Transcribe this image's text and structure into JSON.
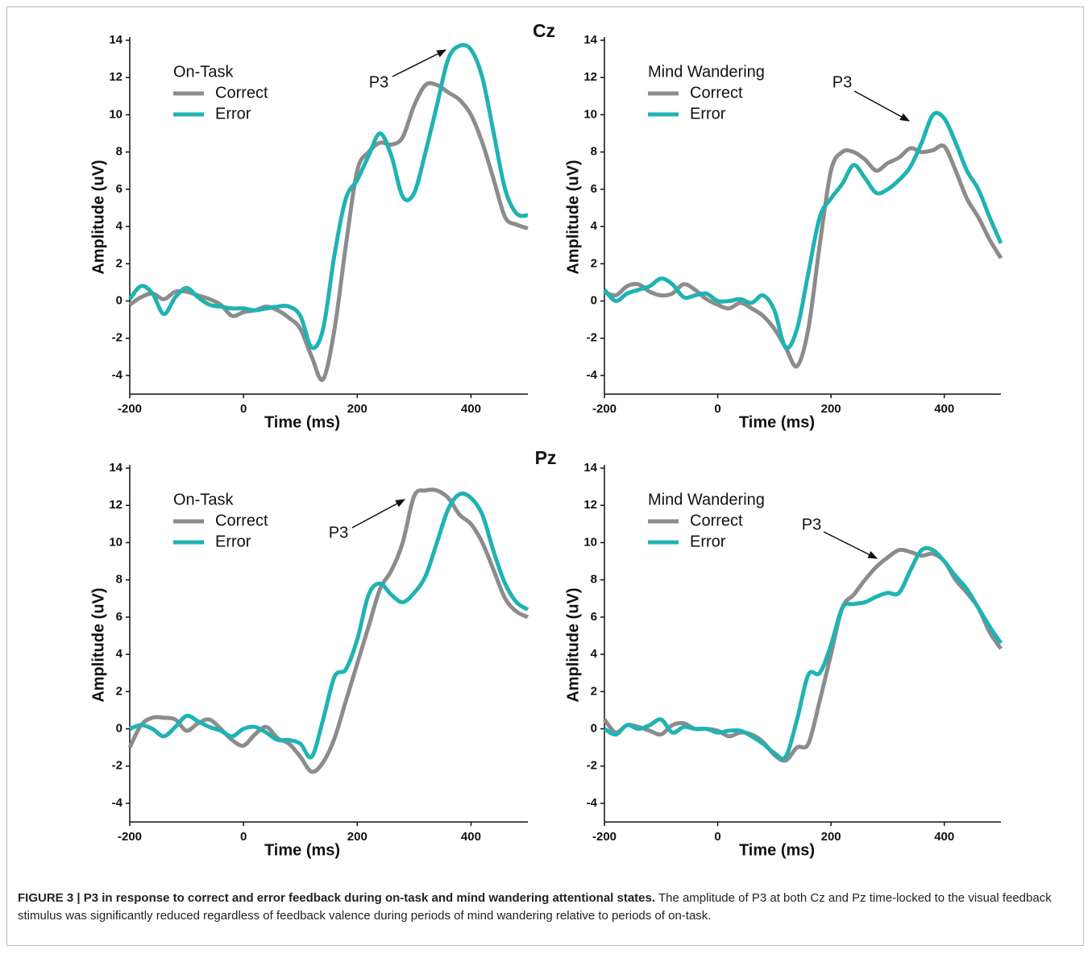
{
  "row_labels": [
    "Cz",
    "Pz"
  ],
  "chart_data": [
    {
      "type": "line",
      "legend_title": "On-Task",
      "legend": "upper left",
      "annotation": "P3",
      "xlabel": "Time (ms)",
      "ylabel": "Amplitude (uV)",
      "xlim": [
        -200,
        500
      ],
      "ylim": [
        -5,
        14
      ],
      "xticks": [
        -200,
        0,
        200,
        400
      ],
      "yticks": [
        -4,
        -2,
        0,
        2,
        4,
        6,
        8,
        10,
        12,
        14
      ],
      "x": [
        -200,
        -180,
        -160,
        -140,
        -120,
        -100,
        -80,
        -60,
        -40,
        -20,
        0,
        20,
        40,
        60,
        80,
        100,
        120,
        140,
        160,
        180,
        200,
        220,
        240,
        260,
        280,
        300,
        320,
        340,
        360,
        380,
        400,
        420,
        440,
        460,
        480,
        500
      ],
      "series": [
        {
          "name": "Correct",
          "color": "#8c8c8c",
          "values": [
            -0.2,
            0.2,
            0.4,
            0.1,
            0.5,
            0.5,
            0.3,
            0.1,
            -0.2,
            -0.8,
            -0.6,
            -0.5,
            -0.3,
            -0.5,
            -0.9,
            -1.5,
            -3.0,
            -4.2,
            -1.5,
            3.0,
            7.0,
            8.0,
            8.5,
            8.4,
            8.8,
            10.5,
            11.6,
            11.6,
            11.2,
            10.8,
            10.0,
            8.5,
            6.5,
            4.5,
            4.1,
            3.9
          ]
        },
        {
          "name": "Error",
          "color": "#1fb3b3",
          "values": [
            0.1,
            0.8,
            0.4,
            -0.7,
            0.2,
            0.7,
            0.2,
            -0.2,
            -0.3,
            -0.4,
            -0.4,
            -0.5,
            -0.4,
            -0.3,
            -0.3,
            -0.8,
            -2.5,
            -1.5,
            2.5,
            5.5,
            6.5,
            7.8,
            9.0,
            7.8,
            5.6,
            5.8,
            8.0,
            10.5,
            13.0,
            13.7,
            13.5,
            12.0,
            9.0,
            6.0,
            4.7,
            4.6
          ]
        }
      ]
    },
    {
      "type": "line",
      "legend_title": "Mind Wandering",
      "legend": "upper left",
      "annotation": "P3",
      "xlabel": "Time (ms)",
      "ylabel": "Amplitude (uV)",
      "xlim": [
        -200,
        500
      ],
      "ylim": [
        -5,
        14
      ],
      "xticks": [
        -200,
        0,
        200,
        400
      ],
      "yticks": [
        -4,
        -2,
        0,
        2,
        4,
        6,
        8,
        10,
        12,
        14
      ],
      "x": [
        -200,
        -180,
        -160,
        -140,
        -120,
        -100,
        -80,
        -60,
        -40,
        -20,
        0,
        20,
        40,
        60,
        80,
        100,
        120,
        140,
        160,
        180,
        200,
        220,
        240,
        260,
        280,
        300,
        320,
        340,
        360,
        380,
        400,
        420,
        440,
        460,
        480,
        500
      ],
      "series": [
        {
          "name": "Correct",
          "color": "#8c8c8c",
          "values": [
            0.5,
            0.3,
            0.8,
            0.9,
            0.5,
            0.3,
            0.4,
            0.9,
            0.6,
            0.1,
            -0.2,
            -0.4,
            -0.1,
            -0.4,
            -0.8,
            -1.5,
            -2.5,
            -3.5,
            -1.5,
            3.0,
            7.0,
            8.0,
            8.0,
            7.6,
            7.0,
            7.4,
            7.7,
            8.2,
            8.0,
            8.1,
            8.3,
            7.0,
            5.5,
            4.5,
            3.3,
            2.3
          ]
        },
        {
          "name": "Error",
          "color": "#1fb3b3",
          "values": [
            0.6,
            0.0,
            0.4,
            0.6,
            0.8,
            1.2,
            0.9,
            0.2,
            0.3,
            0.4,
            0.0,
            0.0,
            0.1,
            -0.1,
            0.3,
            -0.5,
            -2.5,
            -1.5,
            1.5,
            4.5,
            5.5,
            6.3,
            7.3,
            6.6,
            5.8,
            6.0,
            6.5,
            7.2,
            8.5,
            10.0,
            9.8,
            8.5,
            7.0,
            6.0,
            4.5,
            3.1
          ]
        }
      ]
    },
    {
      "type": "line",
      "legend_title": "On-Task",
      "legend": "upper left",
      "annotation": "P3",
      "xlabel": "Time (ms)",
      "ylabel": "Amplitude (uV)",
      "xlim": [
        -200,
        500
      ],
      "ylim": [
        -5,
        14
      ],
      "xticks": [
        -200,
        0,
        200,
        400
      ],
      "yticks": [
        -4,
        -2,
        0,
        2,
        4,
        6,
        8,
        10,
        12,
        14
      ],
      "x": [
        -200,
        -180,
        -160,
        -140,
        -120,
        -100,
        -80,
        -60,
        -40,
        -20,
        0,
        20,
        40,
        60,
        80,
        100,
        120,
        140,
        160,
        180,
        200,
        220,
        240,
        260,
        280,
        300,
        320,
        340,
        360,
        380,
        400,
        420,
        440,
        460,
        480,
        500
      ],
      "series": [
        {
          "name": "Correct",
          "color": "#8c8c8c",
          "values": [
            -1.0,
            0.2,
            0.6,
            0.6,
            0.5,
            -0.1,
            0.3,
            0.5,
            0.0,
            -0.6,
            -0.9,
            -0.3,
            0.1,
            -0.5,
            -0.8,
            -1.5,
            -2.3,
            -1.8,
            -0.5,
            1.5,
            3.5,
            5.5,
            7.5,
            8.5,
            10.0,
            12.5,
            12.8,
            12.8,
            12.4,
            11.5,
            11.0,
            10.0,
            8.5,
            7.0,
            6.3,
            6.0
          ]
        },
        {
          "name": "Error",
          "color": "#1fb3b3",
          "values": [
            0.0,
            0.2,
            0.0,
            -0.4,
            0.1,
            0.7,
            0.4,
            0.1,
            -0.1,
            -0.4,
            0.0,
            0.1,
            -0.2,
            -0.6,
            -0.6,
            -0.8,
            -1.5,
            0.5,
            2.8,
            3.2,
            4.8,
            7.2,
            7.8,
            7.2,
            6.8,
            7.3,
            8.2,
            10.0,
            11.8,
            12.6,
            12.4,
            11.5,
            9.5,
            7.8,
            6.8,
            6.4
          ]
        }
      ]
    },
    {
      "type": "line",
      "legend_title": "Mind Wandering",
      "legend": "upper left",
      "annotation": "P3",
      "xlabel": "Time (ms)",
      "ylabel": "Amplitude (uV)",
      "xlim": [
        -200,
        500
      ],
      "ylim": [
        -5,
        14
      ],
      "xticks": [
        -200,
        0,
        200,
        400
      ],
      "yticks": [
        -4,
        -2,
        0,
        2,
        4,
        6,
        8,
        10,
        12,
        14
      ],
      "x": [
        -200,
        -180,
        -160,
        -140,
        -120,
        -100,
        -80,
        -60,
        -40,
        -20,
        0,
        20,
        40,
        60,
        80,
        100,
        120,
        140,
        160,
        180,
        200,
        220,
        240,
        260,
        280,
        300,
        320,
        340,
        360,
        380,
        400,
        420,
        440,
        460,
        480,
        500
      ],
      "series": [
        {
          "name": "Correct",
          "color": "#8c8c8c",
          "values": [
            0.5,
            -0.2,
            0.2,
            0.1,
            -0.1,
            -0.3,
            0.2,
            0.3,
            0.0,
            0.0,
            -0.1,
            -0.4,
            -0.2,
            -0.3,
            -0.7,
            -1.4,
            -1.7,
            -1.0,
            -0.8,
            1.5,
            4.0,
            6.5,
            7.2,
            8.0,
            8.7,
            9.2,
            9.6,
            9.5,
            9.3,
            9.4,
            9.0,
            8.0,
            7.3,
            6.5,
            5.2,
            4.3
          ]
        },
        {
          "name": "Error",
          "color": "#1fb3b3",
          "values": [
            0.0,
            -0.3,
            0.2,
            0.0,
            0.2,
            0.5,
            -0.2,
            0.1,
            0.0,
            0.0,
            -0.2,
            -0.1,
            -0.1,
            -0.4,
            -0.8,
            -1.3,
            -1.5,
            0.5,
            2.9,
            3.0,
            4.5,
            6.5,
            6.7,
            6.8,
            7.1,
            7.3,
            7.3,
            8.5,
            9.6,
            9.6,
            9.0,
            8.2,
            7.5,
            6.5,
            5.5,
            4.6
          ]
        }
      ]
    }
  ],
  "caption": {
    "label": "FIGURE 3 | P3 in response to correct and error feedback during on-task and mind wandering attentional states.",
    "text": "The amplitude of P3 at both Cz and Pz time-locked to the visual feedback stimulus was significantly reduced regardless of feedback valence during periods of mind wandering relative to periods of on-task."
  }
}
